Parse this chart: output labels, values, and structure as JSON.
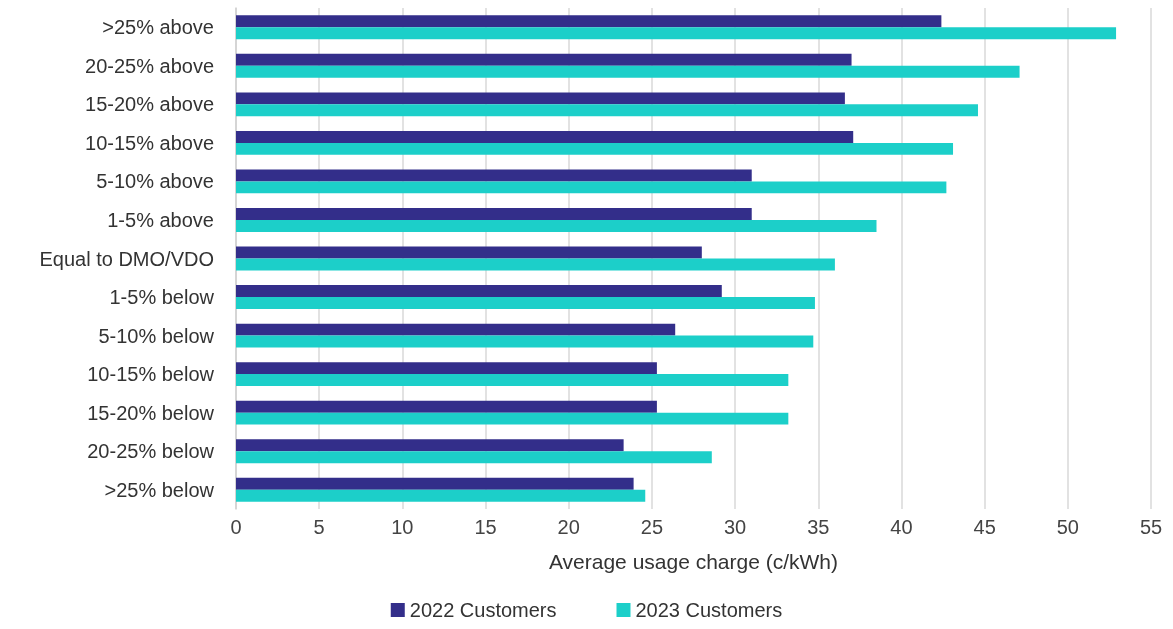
{
  "chart_data": {
    "type": "bar",
    "orientation": "horizontal",
    "xlabel": "Average usage charge (c/kWh)",
    "categories": [
      ">25% above",
      "20-25% above",
      "15-20% above",
      "10-15% above",
      "5-10% above",
      "1-5% above",
      "Equal to DMO/VDO",
      "1-5% below",
      "5-10% below",
      "10-15% below",
      "15-20% below",
      "20-25% below",
      ">25% below"
    ],
    "series": [
      {
        "name": "2022 Customers",
        "color": "#332e8a",
        "values": [
          42.4,
          37.0,
          36.6,
          37.1,
          31.0,
          31.0,
          28.0,
          29.2,
          26.4,
          25.3,
          25.3,
          23.3,
          23.9
        ]
      },
      {
        "name": "2023 Customers",
        "color": "#1ccfc9",
        "values": [
          52.9,
          47.1,
          44.6,
          43.1,
          42.7,
          38.5,
          36.0,
          34.8,
          34.7,
          33.2,
          33.2,
          28.6,
          24.6
        ]
      }
    ],
    "xlim": [
      0,
      55
    ],
    "xticks": [
      0,
      5,
      10,
      15,
      20,
      25,
      30,
      35,
      40,
      45,
      50,
      55
    ],
    "grid": "x",
    "legend": "bottom"
  }
}
